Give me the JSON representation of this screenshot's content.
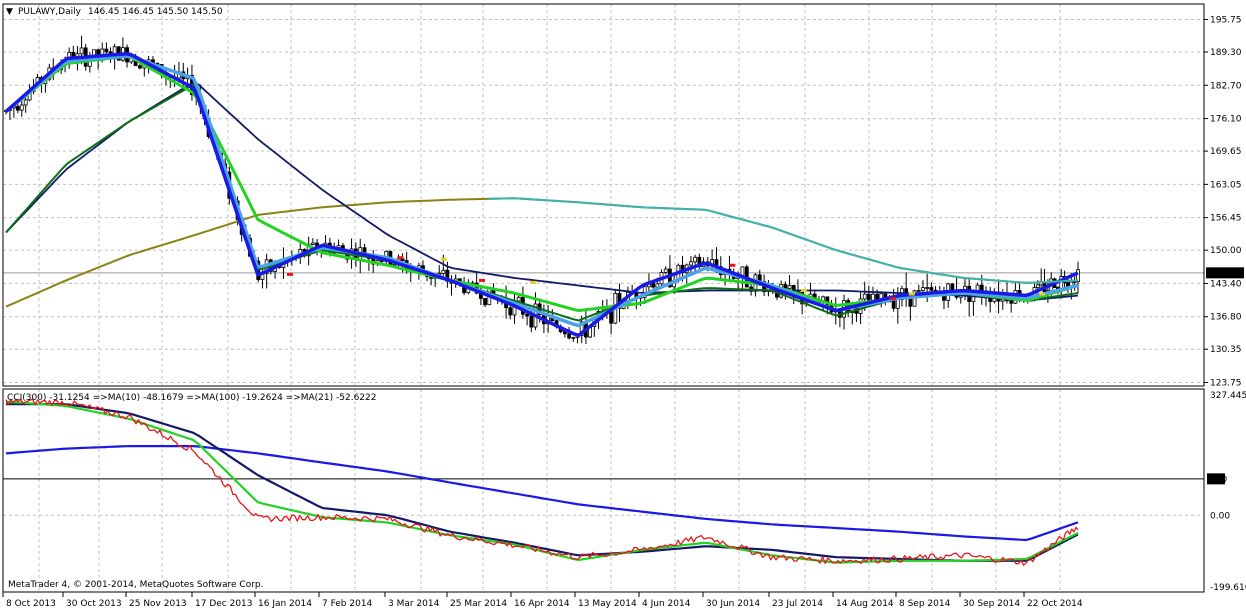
{
  "window": {
    "title_glyph": "▼",
    "title": "PULAWY,Daily",
    "ohlc": "146.45 146.45 145.50 145.50",
    "current_price": "145.50"
  },
  "main_axis": {
    "labels": [
      "195.75",
      "189.30",
      "182.70",
      "176.10",
      "169.65",
      "163.05",
      "156.45",
      "150.00",
      "143.40",
      "136.80",
      "130.35",
      "123.75"
    ],
    "values": [
      195.75,
      189.3,
      182.7,
      176.1,
      169.65,
      163.05,
      156.45,
      150.0,
      143.4,
      136.8,
      130.35,
      123.75
    ]
  },
  "indicator": {
    "legend": "CCI(300) -31.1254  =>MA(10) -48.1679  =>MA(100) -19.2624  =>MA(21) -52.6222",
    "axis_labels": [
      "327.4451",
      "100",
      "0.00",
      "-199.616"
    ],
    "axis_values": [
      327.4451,
      100,
      0,
      -199.616
    ],
    "level_line": 100
  },
  "footer": {
    "copyright": "MetaTrader 4, © 2001-2014, MetaQuotes Software Corp."
  },
  "time_axis": {
    "labels": [
      "8 Oct 2013",
      "30 Oct 2013",
      "25 Nov 2013",
      "17 Dec 2013",
      "16 Jan 2014",
      "7 Feb 2014",
      "3 Mar 2014",
      "25 Mar 2014",
      "16 Apr 2014",
      "13 May 2014",
      "4 Jun 2014",
      "30 Jun 2014",
      "23 Jul 2014",
      "14 Aug 2014",
      "8 Sep 2014",
      "30 Sep 2014",
      "22 Oct 2014"
    ]
  },
  "colors": {
    "background": "#ffffff",
    "grid": "#c0c0c0",
    "candle": "#000000",
    "fast_ma_blue": "#1a1ae6",
    "fast_ma_lightblue": "#4aa3e8",
    "green_ma": "#22d322",
    "navy_ma": "#111a66",
    "darkgreen_ma": "#0a6e14",
    "olive_ma": "#8c8214",
    "teal_ma": "#3bb3b3",
    "cci_red": "#e8161b",
    "cci_green": "#22d322",
    "cci_navy": "#111a66",
    "cci_blue": "#1a1ae6",
    "red_dot": "#e8161b",
    "yellow_dot": "#e5d31a"
  },
  "chart_data": [
    {
      "type": "line",
      "title": "PULAWY,Daily",
      "ylim": [
        123.75,
        195.75
      ],
      "x": [
        "8 Oct 2013",
        "30 Oct 2013",
        "25 Nov 2013",
        "17 Dec 2013",
        "16 Jan 2014",
        "7 Feb 2014",
        "3 Mar 2014",
        "25 Mar 2014",
        "16 Apr 2014",
        "13 May 2014",
        "4 Jun 2014",
        "30 Jun 2014",
        "23 Jul 2014",
        "14 Aug 2014",
        "8 Sep 2014",
        "30 Sep 2014",
        "22 Oct 2014",
        "24 Oct 2014"
      ],
      "series": [
        {
          "values": [
            177.5,
            188.0,
            189.0,
            182.0,
            145.0,
            151.0,
            148.0,
            144.0,
            139.0,
            133.0,
            143.0,
            147.5,
            142.5,
            138.0,
            141.0,
            142.0,
            141.0,
            145.5
          ]
        },
        {
          "values": [
            177.5,
            187.5,
            188.5,
            184.0,
            146.5,
            150.5,
            148.5,
            144.0,
            139.5,
            135.0,
            141.0,
            146.5,
            143.0,
            138.0,
            140.5,
            141.5,
            140.5,
            143.0
          ]
        },
        {
          "values": [
            177.5,
            187.0,
            188.5,
            181.0,
            156.0,
            149.5,
            147.0,
            144.0,
            141.5,
            138.0,
            139.5,
            144.5,
            143.0,
            139.0,
            140.5,
            141.5,
            140.0,
            143.0
          ]
        },
        {
          "values": [
            153.5,
            166.0,
            175.5,
            183.5,
            172.0,
            162.0,
            153.0,
            146.5,
            144.5,
            143.0,
            141.5,
            142.0,
            142.0,
            142.0,
            141.5,
            141.0,
            140.0,
            141.0
          ]
        },
        {
          "values": [
            153.5,
            167.0,
            175.5,
            183.0,
            146.0,
            150.0,
            148.0,
            144.0,
            140.0,
            136.0,
            141.0,
            142.5,
            142.0,
            137.0,
            140.5,
            141.5,
            140.0,
            141.5
          ]
        },
        {
          "values": [
            138.8,
            144.0,
            149.0,
            153.0,
            157.0,
            158.5,
            159.5,
            160.0,
            160.3,
            159.5,
            158.5,
            158.0,
            154.5,
            150.0,
            146.5,
            144.5,
            143.5,
            144.0
          ]
        }
      ]
    },
    {
      "type": "line",
      "title": "CCI(300)",
      "ylim": [
        -199.616,
        327.4451
      ],
      "x": [
        "8 Oct 2013",
        "30 Oct 2013",
        "25 Nov 2013",
        "17 Dec 2013",
        "16 Jan 2014",
        "7 Feb 2014",
        "3 Mar 2014",
        "25 Mar 2014",
        "16 Apr 2014",
        "13 May 2014",
        "4 Jun 2014",
        "30 Jun 2014",
        "23 Jul 2014",
        "14 Aug 2014",
        "8 Sep 2014",
        "30 Sep 2014",
        "22 Oct 2014",
        "24 Oct 2014"
      ],
      "series": [
        {
          "name": "CCI(300)",
          "values": [
            312,
            310,
            270,
            175,
            -10,
            -5,
            -10,
            -55,
            -82,
            -115,
            -95,
            -60,
            -115,
            -125,
            -120,
            -110,
            -130,
            -31.1
          ]
        },
        {
          "name": "MA(10)",
          "values": [
            312,
            300,
            265,
            205,
            35,
            -5,
            -20,
            -55,
            -80,
            -123,
            -95,
            -75,
            -110,
            -130,
            -125,
            -125,
            -120,
            -48.2
          ]
        },
        {
          "name": "MA(21)",
          "values": [
            305,
            305,
            280,
            225,
            110,
            20,
            0,
            -45,
            -75,
            -110,
            -100,
            -85,
            -95,
            -115,
            -120,
            -125,
            -125,
            -52.6
          ]
        },
        {
          "name": "MA(100)",
          "values": [
            170,
            183,
            190,
            190,
            170,
            145,
            120,
            90,
            60,
            30,
            10,
            -10,
            -25,
            -35,
            -45,
            -58,
            -68,
            -19.3
          ]
        }
      ]
    }
  ]
}
